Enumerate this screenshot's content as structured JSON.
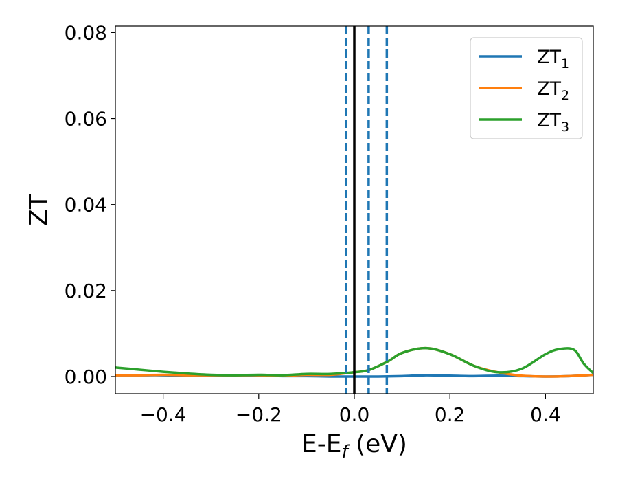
{
  "chart_data": {
    "type": "line",
    "xlabel_main": "E-E",
    "xlabel_sub": "f",
    "xlabel_unit": " (eV)",
    "ylabel": "ZT",
    "xlim": [
      -0.5,
      0.5
    ],
    "ylim": [
      -0.004,
      0.0815
    ],
    "x_ticks": [
      -0.4,
      -0.2,
      0.0,
      0.2,
      0.4
    ],
    "x_tick_labels": [
      "−0.4",
      "−0.2",
      "0.0",
      "0.2",
      "0.4"
    ],
    "y_ticks": [
      0.0,
      0.02,
      0.04,
      0.06,
      0.08
    ],
    "y_tick_labels": [
      "0.00",
      "0.02",
      "0.04",
      "0.06",
      "0.08"
    ],
    "grid": false,
    "legend_position": "top-right",
    "vertical_lines": [
      {
        "x": 0.0,
        "style": "solid",
        "color": "#000000"
      },
      {
        "x": -0.017,
        "style": "dashed",
        "color": "#1f77b4"
      },
      {
        "x": 0.03,
        "style": "dashed",
        "color": "#1f77b4"
      },
      {
        "x": 0.068,
        "style": "dashed",
        "color": "#1f77b4"
      }
    ],
    "series": [
      {
        "name_main": "ZT",
        "name_sub": "1",
        "color": "#1f77b4",
        "x": [
          -0.5,
          -0.45,
          -0.4,
          -0.35,
          -0.3,
          -0.25,
          -0.2,
          -0.15,
          -0.1,
          -0.05,
          0.0,
          0.05,
          0.1,
          0.15,
          0.2,
          0.25,
          0.3,
          0.35,
          0.4,
          0.45,
          0.5
        ],
        "y": [
          0.0003,
          0.0003,
          0.0003,
          0.0002,
          0.0002,
          0.0002,
          0.0002,
          0.0001,
          0.0001,
          0.0,
          0.0,
          0.0,
          0.0001,
          0.0003,
          0.0002,
          0.0001,
          0.0002,
          0.0001,
          0.0,
          0.0001,
          0.0004
        ]
      },
      {
        "name_main": "ZT",
        "name_sub": "2",
        "color": "#ff7f0e",
        "x": [
          -0.5,
          -0.45,
          -0.4,
          -0.35,
          -0.3,
          -0.25,
          -0.2,
          -0.15,
          -0.1,
          -0.05,
          0.0,
          0.03,
          0.07,
          0.1,
          0.15,
          0.2,
          0.25,
          0.3,
          0.35,
          0.4,
          0.45,
          0.5
        ],
        "y": [
          0.0003,
          0.0003,
          0.0004,
          0.0003,
          0.0003,
          0.0003,
          0.0003,
          0.0002,
          0.0004,
          0.0004,
          0.001,
          0.0015,
          0.0035,
          0.0055,
          0.0066,
          0.0052,
          0.0025,
          0.001,
          0.0002,
          0.0,
          0.0001,
          0.0004
        ]
      },
      {
        "name_main": "ZT",
        "name_sub": "3",
        "color": "#2ca02c",
        "x": [
          -0.5,
          -0.45,
          -0.4,
          -0.35,
          -0.3,
          -0.25,
          -0.2,
          -0.15,
          -0.1,
          -0.05,
          0.0,
          0.03,
          0.07,
          0.1,
          0.15,
          0.2,
          0.25,
          0.3,
          0.35,
          0.4,
          0.43,
          0.46,
          0.48,
          0.5
        ],
        "y": [
          0.0021,
          0.0016,
          0.0011,
          0.0007,
          0.0004,
          0.0003,
          0.0004,
          0.0003,
          0.0006,
          0.0006,
          0.001,
          0.0015,
          0.0035,
          0.0055,
          0.0066,
          0.0052,
          0.0025,
          0.001,
          0.0018,
          0.0052,
          0.0064,
          0.0062,
          0.003,
          0.0008
        ]
      }
    ]
  }
}
